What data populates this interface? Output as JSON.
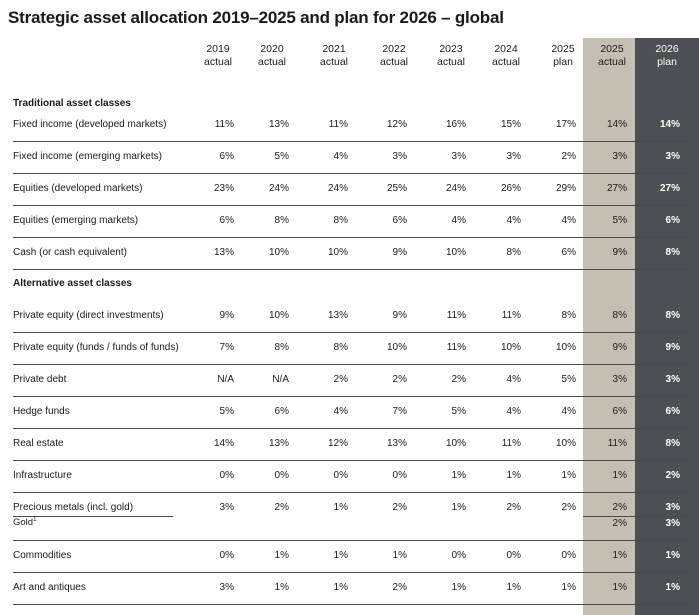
{
  "title": "Strategic asset allocation 2019–2025 and plan for 2026 – global",
  "colors": {
    "actual_2025_bg": "#c3c0b3",
    "plan_2026_bg": "#4c5050",
    "plan_2026_text": "#ffffff"
  },
  "columns": [
    {
      "year": "2019",
      "kind": "actual"
    },
    {
      "year": "2020",
      "kind": "actual"
    },
    {
      "year": "2021",
      "kind": "actual"
    },
    {
      "year": "2022",
      "kind": "actual"
    },
    {
      "year": "2023",
      "kind": "actual"
    },
    {
      "year": "2024",
      "kind": "actual"
    },
    {
      "year": "2025",
      "kind": "plan"
    },
    {
      "year": "2025",
      "kind": "actual"
    },
    {
      "year": "2026",
      "kind": "plan"
    }
  ],
  "sections": [
    {
      "title": "Traditional asset classes",
      "rows": [
        {
          "label": "Fixed income (developed markets)",
          "values": [
            "11%",
            "13%",
            "11%",
            "12%",
            "16%",
            "15%",
            "17%",
            "14%",
            "14%"
          ]
        },
        {
          "label": "Fixed income (emerging markets)",
          "values": [
            "6%",
            "5%",
            "4%",
            "3%",
            "3%",
            "3%",
            "2%",
            "3%",
            "3%"
          ]
        },
        {
          "label": "Equities (developed markets)",
          "values": [
            "23%",
            "24%",
            "24%",
            "25%",
            "24%",
            "26%",
            "29%",
            "27%",
            "27%"
          ]
        },
        {
          "label": "Equities (emerging markets)",
          "values": [
            "6%",
            "8%",
            "8%",
            "6%",
            "4%",
            "4%",
            "4%",
            "5%",
            "6%"
          ]
        },
        {
          "label": "Cash (or cash equivalent)",
          "values": [
            "13%",
            "10%",
            "10%",
            "9%",
            "10%",
            "8%",
            "6%",
            "9%",
            "8%"
          ]
        }
      ]
    },
    {
      "title": "Alternative asset classes",
      "rows": [
        {
          "label": "Private equity (direct investments)",
          "values": [
            "9%",
            "10%",
            "13%",
            "9%",
            "11%",
            "11%",
            "8%",
            "8%",
            "8%"
          ]
        },
        {
          "label": "Private equity (funds / funds of funds)",
          "values": [
            "7%",
            "8%",
            "8%",
            "10%",
            "11%",
            "10%",
            "10%",
            "9%",
            "9%"
          ]
        },
        {
          "label": "Private debt",
          "values": [
            "N/A",
            "N/A",
            "2%",
            "2%",
            "2%",
            "4%",
            "5%",
            "3%",
            "3%"
          ]
        },
        {
          "label": "Hedge funds",
          "values": [
            "5%",
            "6%",
            "4%",
            "7%",
            "5%",
            "4%",
            "4%",
            "6%",
            "6%"
          ]
        },
        {
          "label": "Real estate",
          "values": [
            "14%",
            "13%",
            "12%",
            "13%",
            "10%",
            "11%",
            "10%",
            "11%",
            "8%"
          ]
        },
        {
          "label": "Infrastructure",
          "values": [
            "0%",
            "0%",
            "0%",
            "0%",
            "1%",
            "1%",
            "1%",
            "1%",
            "2%"
          ]
        },
        {
          "label": "Precious metals (incl. gold)",
          "values": [
            "3%",
            "2%",
            "1%",
            "2%",
            "1%",
            "2%",
            "2%",
            "2%",
            "3%"
          ],
          "sub": {
            "label": "Gold",
            "footnote": "1",
            "values": [
              "",
              "",
              "",
              "",
              "",
              "",
              "",
              "2%",
              "3%"
            ]
          }
        },
        {
          "label": "Commodities",
          "values": [
            "0%",
            "1%",
            "1%",
            "1%",
            "0%",
            "0%",
            "0%",
            "1%",
            "1%"
          ]
        },
        {
          "label": "Art and antiques",
          "values": [
            "3%",
            "1%",
            "1%",
            "2%",
            "1%",
            "1%",
            "1%",
            "1%",
            "1%"
          ]
        }
      ]
    }
  ]
}
